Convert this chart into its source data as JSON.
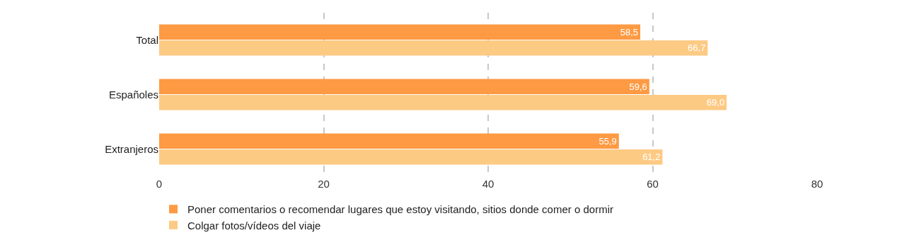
{
  "chart_data": {
    "type": "bar",
    "orientation": "horizontal",
    "categories": [
      "Total",
      "Españoles",
      "Extranjeros"
    ],
    "series": [
      {
        "name": "Poner comentarios o recomendar lugares que estoy visitando, sitios donde comer o dormir",
        "color": "#fd9a43",
        "values": [
          58.5,
          59.6,
          55.9
        ],
        "value_labels": [
          "58,5",
          "59,6",
          "55,9"
        ]
      },
      {
        "name": "Colgar fotos/vídeos del viaje",
        "color": "#fdca84",
        "values": [
          66.7,
          69.0,
          61.2
        ],
        "value_labels": [
          "66,7",
          "69,0",
          "61,2"
        ]
      }
    ],
    "xlim": [
      0,
      80
    ],
    "xticks": [
      0,
      20,
      40,
      60,
      80
    ],
    "grid": "x",
    "legend": "bottom left"
  }
}
